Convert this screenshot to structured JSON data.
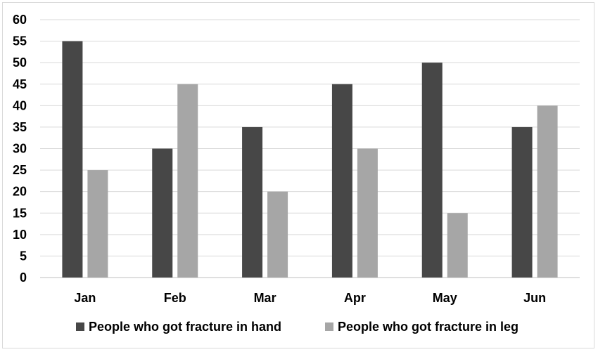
{
  "chart_data": {
    "type": "bar",
    "title": "",
    "xlabel": "",
    "ylabel": "",
    "categories": [
      "Jan",
      "Feb",
      "Mar",
      "Apr",
      "May",
      "Jun"
    ],
    "series": [
      {
        "name": "People who got fracture in hand",
        "values": [
          55,
          30,
          35,
          45,
          50,
          35
        ],
        "color": "#474747"
      },
      {
        "name": "People who got fracture in leg",
        "values": [
          25,
          45,
          20,
          30,
          15,
          40
        ],
        "color": "#a6a6a6"
      }
    ],
    "ylim": [
      0,
      60
    ],
    "yticks": [
      "0",
      "5",
      "10",
      "15",
      "20",
      "25",
      "30",
      "35",
      "40",
      "45",
      "50",
      "55",
      "60"
    ],
    "grid": true,
    "legend": "bottom"
  }
}
